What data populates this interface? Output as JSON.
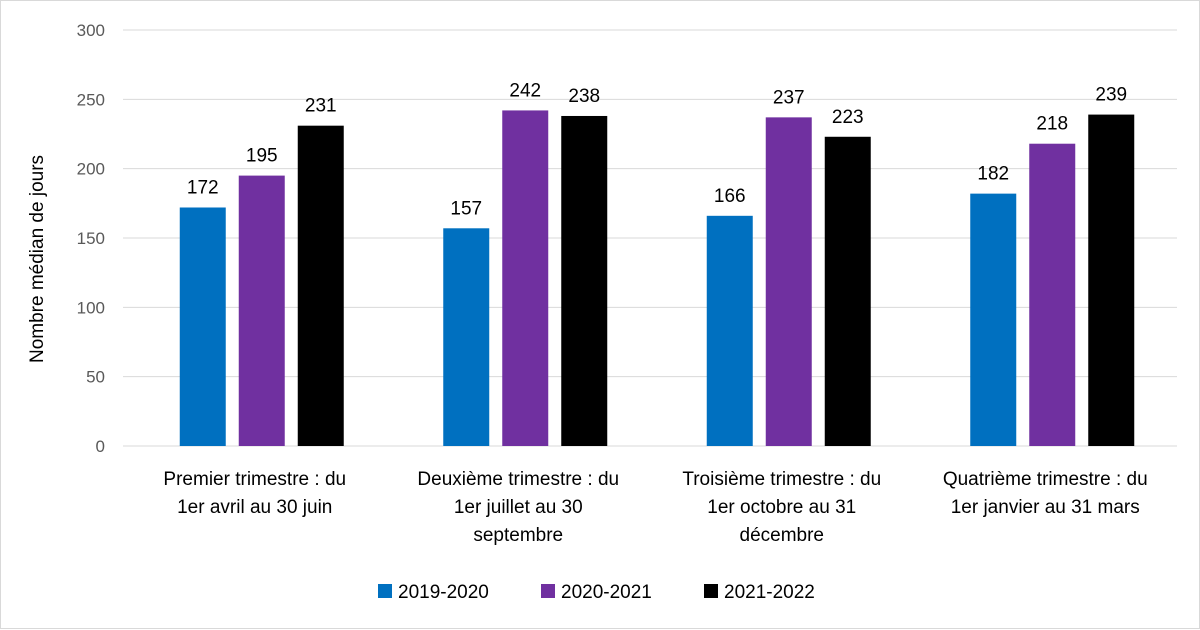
{
  "chart_data": {
    "type": "bar",
    "ylabel": "Nombre médian de jours",
    "ylim": [
      0,
      300
    ],
    "yticks": [
      0,
      50,
      100,
      150,
      200,
      250,
      300
    ],
    "grid": true,
    "legend_position": "bottom",
    "categories": [
      [
        "Premier trimestre : du",
        "1er avril au 30 juin"
      ],
      [
        "Deuxième trimestre : du",
        "1er juillet au 30",
        "septembre"
      ],
      [
        "Troisième trimestre : du",
        "1er octobre au 31",
        "décembre"
      ],
      [
        "Quatrième trimestre : du",
        "1er janvier au 31 mars"
      ]
    ],
    "series": [
      {
        "name": "2019-2020",
        "color": "#0070c0",
        "values": [
          172,
          157,
          166,
          182
        ]
      },
      {
        "name": "2020-2021",
        "color": "#7030a0",
        "values": [
          195,
          242,
          237,
          218
        ]
      },
      {
        "name": "2021-2022",
        "color": "#000000",
        "values": [
          231,
          238,
          223,
          239
        ]
      }
    ]
  }
}
